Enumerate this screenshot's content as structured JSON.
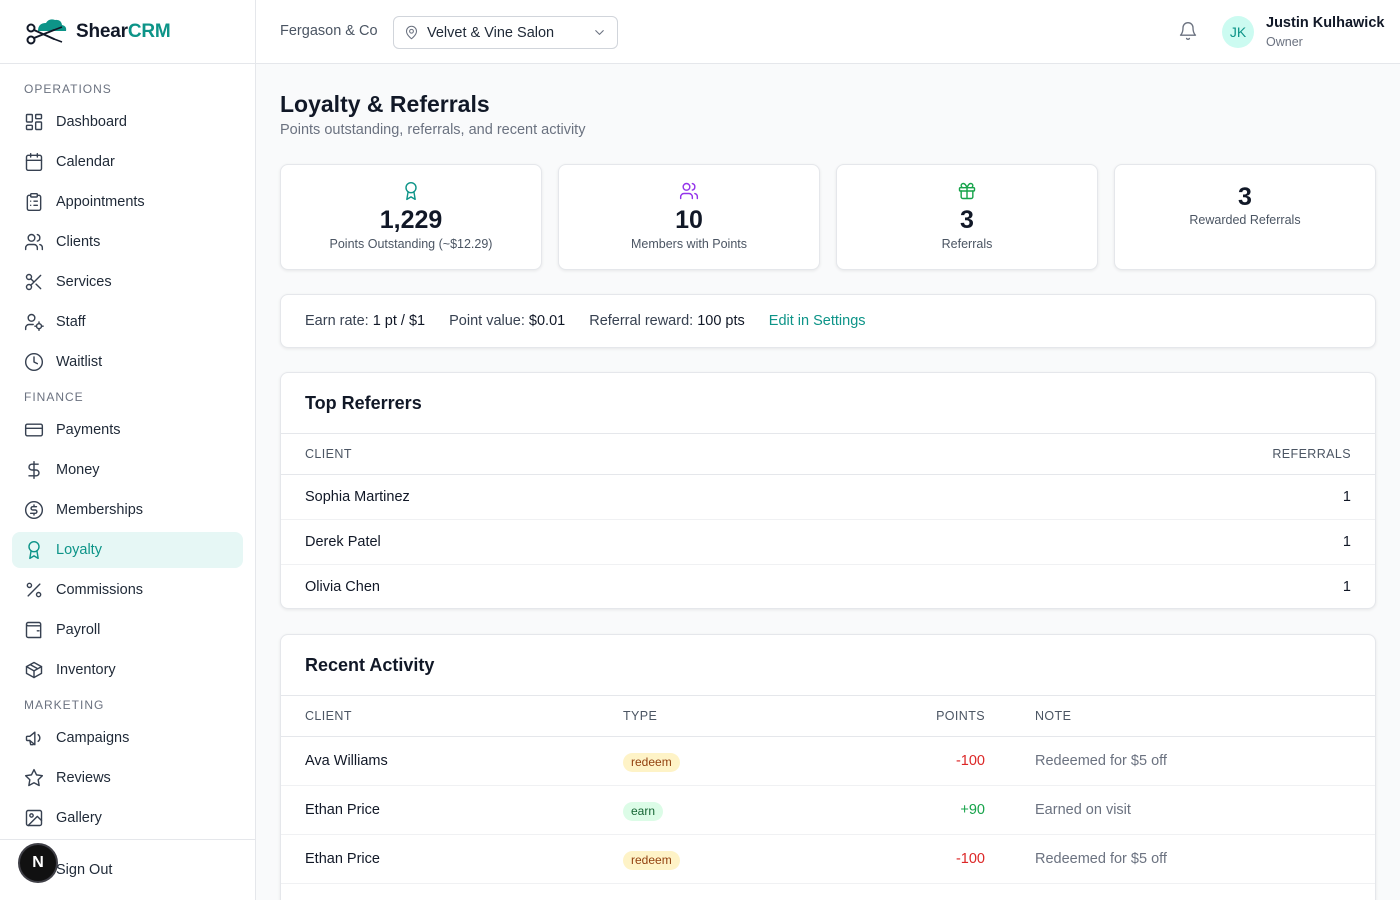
{
  "brand": {
    "name_part1": "Shear",
    "name_part2": "CRM"
  },
  "sidebar": {
    "sections": [
      {
        "title": "OPERATIONS",
        "items": [
          {
            "label": "Dashboard",
            "icon": "dashboard-icon"
          },
          {
            "label": "Calendar",
            "icon": "calendar-icon"
          },
          {
            "label": "Appointments",
            "icon": "clipboard-icon"
          },
          {
            "label": "Clients",
            "icon": "users-icon"
          },
          {
            "label": "Services",
            "icon": "scissors-icon"
          },
          {
            "label": "Staff",
            "icon": "user-cog-icon"
          },
          {
            "label": "Waitlist",
            "icon": "clock-icon"
          }
        ]
      },
      {
        "title": "FINANCE",
        "items": [
          {
            "label": "Payments",
            "icon": "credit-card-icon"
          },
          {
            "label": "Money",
            "icon": "dollar-icon"
          },
          {
            "label": "Memberships",
            "icon": "badge-dollar-icon"
          },
          {
            "label": "Loyalty",
            "icon": "award-icon",
            "active": true
          },
          {
            "label": "Commissions",
            "icon": "percent-icon"
          },
          {
            "label": "Payroll",
            "icon": "wallet-icon"
          },
          {
            "label": "Inventory",
            "icon": "package-icon"
          }
        ]
      },
      {
        "title": "MARKETING",
        "items": [
          {
            "label": "Campaigns",
            "icon": "megaphone-icon"
          },
          {
            "label": "Reviews",
            "icon": "star-icon"
          },
          {
            "label": "Gallery",
            "icon": "image-icon"
          }
        ]
      }
    ],
    "signout_label": "Sign Out",
    "dev_badge": "N"
  },
  "header": {
    "org": "Fergason & Co",
    "location": "Velvet & Vine Salon",
    "user_initials": "JK",
    "user_name": "Justin Kulhawick",
    "user_role": "Owner"
  },
  "page": {
    "title": "Loyalty & Referrals",
    "subtitle": "Points outstanding, referrals, and recent activity"
  },
  "stats": [
    {
      "value": "1,229",
      "label": "Points Outstanding (~$12.29)",
      "icon": "award-icon",
      "color": "#0d9488"
    },
    {
      "value": "10",
      "label": "Members with Points",
      "icon": "users-icon",
      "color": "#9333ea"
    },
    {
      "value": "3",
      "label": "Referrals",
      "icon": "gift-icon",
      "color": "#16a34a"
    },
    {
      "value": "3",
      "label": "Rewarded Referrals",
      "icon": "",
      "color": ""
    }
  ],
  "settings": {
    "earn_rate_label": "Earn rate:",
    "earn_rate": "1 pt / $1",
    "point_value_label": "Point value:",
    "point_value": "$0.01",
    "referral_reward_label": "Referral reward:",
    "referral_reward": "100 pts",
    "edit_link": "Edit in Settings"
  },
  "top_referrers": {
    "title": "Top Referrers",
    "columns": {
      "client": "CLIENT",
      "referrals": "REFERRALS"
    },
    "rows": [
      {
        "client": "Sophia Martinez",
        "referrals": "1"
      },
      {
        "client": "Derek Patel",
        "referrals": "1"
      },
      {
        "client": "Olivia Chen",
        "referrals": "1"
      }
    ]
  },
  "recent_activity": {
    "title": "Recent Activity",
    "columns": {
      "client": "CLIENT",
      "type": "TYPE",
      "points": "POINTS",
      "note": "NOTE"
    },
    "rows": [
      {
        "client": "Ava Williams",
        "type": "redeem",
        "points": "-100",
        "note": "Redeemed for $5 off"
      },
      {
        "client": "Ethan Price",
        "type": "earn",
        "points": "+90",
        "note": "Earned on visit"
      },
      {
        "client": "Ethan Price",
        "type": "redeem",
        "points": "-100",
        "note": "Redeemed for $5 off"
      }
    ]
  },
  "colors": {
    "accent": "#0d9488",
    "active_bg": "#e6f7f5",
    "negative": "#dc2626",
    "positive": "#16a34a"
  }
}
